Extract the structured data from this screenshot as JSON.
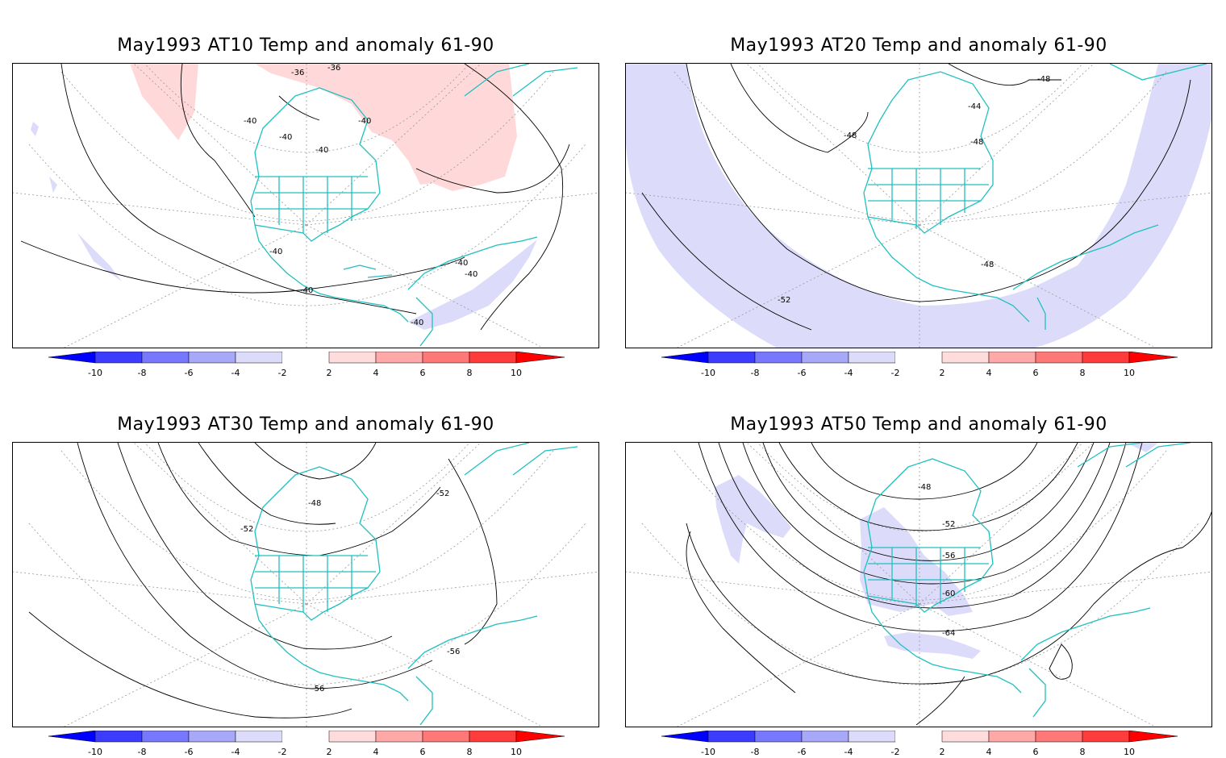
{
  "panels": [
    {
      "id": "at10",
      "title": "May1993 AT10 Temp and anomaly 61-90",
      "contour_labels": [
        "-36",
        "-36",
        "-40",
        "-40",
        "-40",
        "-40",
        "-40",
        "-40",
        "-40",
        "-40",
        "-40"
      ],
      "anomaly_color": "#ffd9d9",
      "anomaly_sign": "warm"
    },
    {
      "id": "at20",
      "title": "May1993 AT20 Temp and anomaly 61-90",
      "contour_labels": [
        "-48",
        "-44",
        "-48",
        "-48",
        "-48",
        "-52"
      ],
      "anomaly_color": "#dcdcfa",
      "anomaly_sign": "cold"
    },
    {
      "id": "at30",
      "title": "May1993 AT30 Temp and anomaly 61-90",
      "contour_labels": [
        "-52",
        "-48",
        "-52",
        "-56",
        "-56"
      ],
      "anomaly_color": "#dcdcfa",
      "anomaly_sign": "cold"
    },
    {
      "id": "at50",
      "title": "May1993 AT50 Temp and anomaly 61-90",
      "contour_labels": [
        "-48",
        "-52",
        "-56",
        "-60",
        "-64"
      ],
      "anomaly_color": "#dcdcfa",
      "anomaly_sign": "cold"
    }
  ],
  "colorbar": {
    "levels": [
      "-10",
      "-8",
      "-6",
      "-4",
      "-2",
      "2",
      "4",
      "6",
      "8",
      "10"
    ],
    "colors": [
      "#0000ff",
      "#3c3cff",
      "#7878ff",
      "#a8a8f8",
      "#dcdcfa",
      "#ffffff",
      "#ffdcdc",
      "#ffa8a8",
      "#ff7878",
      "#ff3c3c",
      "#ff0000"
    ]
  },
  "colors": {
    "coastline": "#20c0c0",
    "contour": "#000000",
    "grid": "#999999"
  }
}
